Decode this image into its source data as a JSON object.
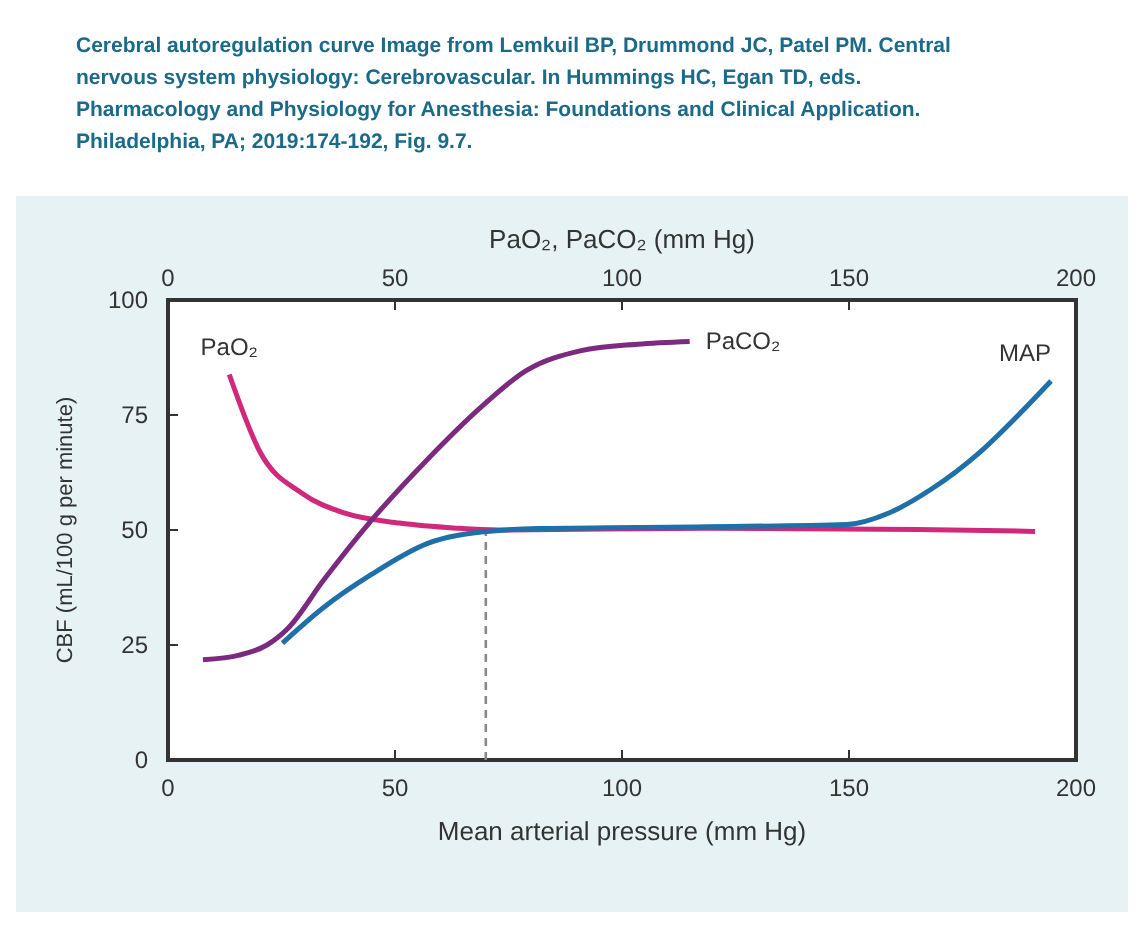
{
  "chart_data": {
    "type": "line",
    "title": "Cerebral autoregulation curve Image from Lemkuil BP, Drummond JC, Patel PM. Central nervous system physiology: Cerebrovascular. In Hummings HC, Egan TD, eds. Pharmacology and Physiology for Anesthesia: Foundations and Clinical Application. Philadelphia, PA; 2019:174-192, Fig. 9.7.",
    "xlabel": "Mean arterial pressure (mm Hg)",
    "x2label": "PaO₂, PaCO₂ (mm Hg)",
    "ylabel": "CBF (mL/100 g per minute)",
    "xlim": [
      0,
      200
    ],
    "xticks": [
      0,
      50,
      100,
      150,
      200
    ],
    "x2lim": [
      0,
      200
    ],
    "x2ticks": [
      0,
      50,
      100,
      150,
      200
    ],
    "ylim": [
      0,
      100
    ],
    "yticks": [
      0,
      25,
      50,
      75,
      100
    ],
    "grid": false,
    "marker": "none",
    "line_style": "solid",
    "series": [
      {
        "name": "PaO₂",
        "color": "#d0287a",
        "x": [
          13.5,
          20.3,
          29.5,
          38.8,
          51,
          63.4,
          72.6,
          118.8,
          165,
          191
        ],
        "values": [
          83.8,
          66.9,
          58,
          53.7,
          51.5,
          50.4,
          50,
          50.4,
          50.1,
          49.7
        ]
      },
      {
        "name": "PaCO₂",
        "color": "#7b2a80",
        "x": [
          7.7,
          15.7,
          21.8,
          26.5,
          34.2,
          44.9,
          57.2,
          69.5,
          78.8,
          91,
          103.4,
          114.9
        ],
        "values": [
          21.8,
          22.8,
          25,
          28.7,
          39,
          52.2,
          65.4,
          77.2,
          84.6,
          89,
          90.4,
          91
        ]
      },
      {
        "name": "MAP",
        "color": "#1f6fa8",
        "x": [
          25.2,
          34.2,
          44.9,
          57.2,
          69.5,
          81.8,
          118.8,
          149.5,
          158.8,
          168,
          178.8,
          188,
          194.5
        ],
        "values": [
          25.4,
          33.1,
          40.4,
          47.1,
          49.6,
          50.3,
          50.7,
          51.2,
          53.7,
          58.8,
          66.9,
          75.7,
          82.4
        ]
      }
    ],
    "ref_lines": [
      {
        "axis": "x",
        "value": 70,
        "color": "#888888",
        "line_style": "dashed"
      }
    ]
  }
}
